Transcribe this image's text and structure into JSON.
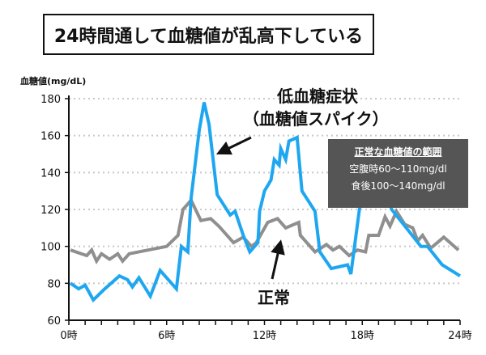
{
  "title": "24時間通して血糖値が乱高下している",
  "chart_data": {
    "type": "line",
    "title": "24時間通して血糖値が乱高下している",
    "ylabel": "血糖値(mg/dL)",
    "xlabel": "",
    "xlim": [
      0,
      24
    ],
    "ylim": [
      60,
      180
    ],
    "yticks": [
      60,
      80,
      100,
      120,
      140,
      160,
      180
    ],
    "xticks": [
      {
        "v": 0,
        "label": "0時"
      },
      {
        "v": 6,
        "label": "6時"
      },
      {
        "v": 12,
        "label": "12時"
      },
      {
        "v": 18,
        "label": "18時"
      },
      {
        "v": 24,
        "label": "24時"
      }
    ],
    "grid": "horizontal dotted",
    "series": [
      {
        "color": "#1ea7f0",
        "x": [
          0.1,
          0.6,
          1.0,
          1.5,
          2.2,
          3.1,
          3.6,
          3.9,
          4.3,
          5.0,
          5.6,
          6.6,
          6.9,
          7.3,
          7.5,
          8.0,
          8.3,
          8.6,
          9.1,
          9.9,
          10.2,
          10.7,
          11.1,
          11.6,
          11.7,
          12.0,
          12.4,
          12.6,
          12.9,
          13.0,
          13.3,
          13.5,
          14.0,
          14.3,
          15.1,
          15.4,
          16.1,
          17.1,
          17.3,
          17.9,
          19.0,
          19.8,
          21.6,
          22.0,
          22.9,
          24.0
        ],
        "y": [
          80,
          77,
          79,
          71,
          77,
          84,
          82,
          78,
          83,
          73,
          87,
          77,
          100,
          97,
          126,
          163,
          178,
          166,
          128,
          117,
          119,
          106,
          97,
          102,
          119,
          130,
          136,
          147,
          144,
          153,
          147,
          157,
          159,
          130,
          119,
          97,
          88,
          90,
          85,
          125,
          145,
          120,
          100,
          100,
          90,
          84
        ]
      },
      {
        "color": "#8f8f8f",
        "x": [
          0.1,
          1.1,
          1.4,
          1.7,
          2.0,
          2.5,
          3.0,
          3.3,
          3.7,
          6.0,
          6.7,
          7.0,
          7.5,
          8.1,
          8.7,
          9.2,
          10.1,
          10.7,
          11.2,
          11.5,
          12.2,
          12.8,
          13.3,
          14.1,
          14.2,
          15.1,
          15.8,
          16.2,
          16.6,
          17.2,
          17.7,
          18.2,
          18.4,
          19.0,
          19.4,
          19.7,
          20.1,
          20.6,
          21.1,
          21.4,
          21.7,
          22.2,
          23.0,
          23.9
        ],
        "y": [
          98,
          95,
          98,
          92,
          96,
          93,
          96,
          92,
          96,
          100,
          106,
          120,
          125,
          114,
          115,
          111,
          102,
          105,
          100,
          102,
          113,
          115,
          110,
          113,
          106,
          97,
          101,
          98,
          100,
          95,
          98,
          97,
          106,
          106,
          116,
          111,
          119,
          112,
          110,
          103,
          106,
          99,
          105,
          98
        ]
      }
    ],
    "annotations": {
      "spike_line1": "低血糖症状",
      "spike_line2": "（血糖値スパイク）",
      "normal": "正常",
      "range_title": "正常な血糖値の範囲",
      "range_fasting": "空腹時60〜110mg/dl",
      "range_after_meal": "食後100〜140mg/dl"
    }
  }
}
